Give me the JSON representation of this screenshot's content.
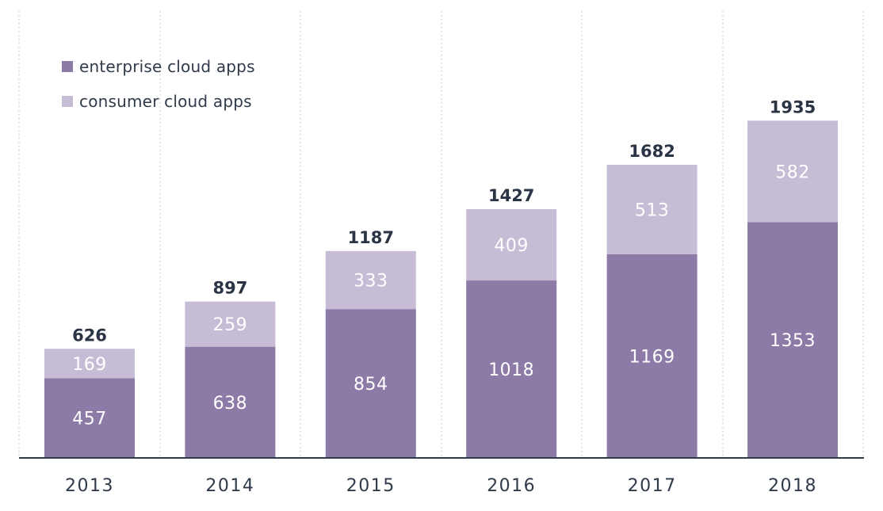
{
  "chart_data": {
    "type": "bar",
    "stacked": true,
    "categories": [
      "2013",
      "2014",
      "2015",
      "2016",
      "2017",
      "2018"
    ],
    "series": [
      {
        "name": "enterprise cloud apps",
        "values": [
          457,
          638,
          854,
          1018,
          1169,
          1353
        ],
        "color": "#8c7ba6"
      },
      {
        "name": "consumer cloud apps",
        "values": [
          169,
          259,
          333,
          409,
          513,
          582
        ],
        "color": "#c6bcd6"
      }
    ],
    "totals": [
      626,
      897,
      1187,
      1427,
      1682,
      1935
    ],
    "title": "",
    "xlabel": "",
    "ylabel": "",
    "ylim": [
      0,
      2500
    ],
    "legend_position": "top-left",
    "grid": "vertical dotted separators",
    "colors": {
      "axis": "#2f3a4a",
      "total_label": "#2a3444",
      "inner_label": "#ffffff",
      "tick_label": "#2f3a4a",
      "grid": "#c8c8c8"
    }
  }
}
